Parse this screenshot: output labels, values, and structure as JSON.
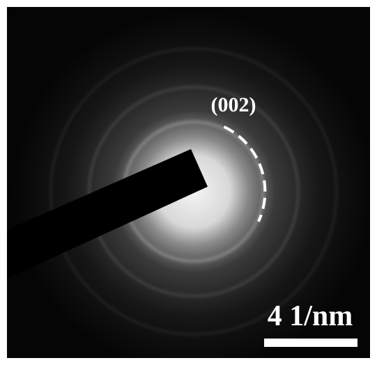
{
  "annotations": {
    "ring_label": "(002)",
    "scale_label": "4 1/nm"
  }
}
